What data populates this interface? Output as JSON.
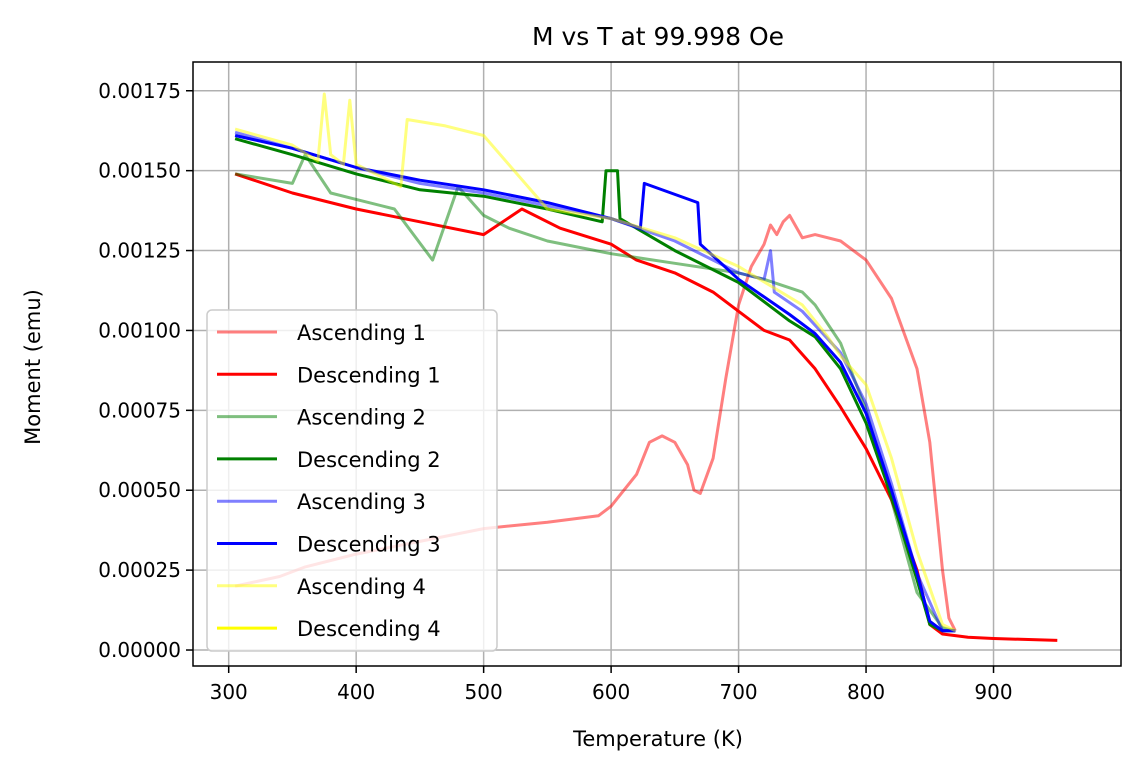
{
  "chart_data": {
    "type": "line",
    "title": "M vs T at 99.998 Oe",
    "xlabel": "Temperature (K)",
    "ylabel": "Moment (emu)",
    "xlim": [
      272,
      1000
    ],
    "ylim": [
      -5e-05,
      0.00184
    ],
    "xticks": [
      300,
      400,
      500,
      600,
      700,
      800,
      900
    ],
    "xtick_labels": [
      "300",
      "400",
      "500",
      "600",
      "700",
      "800",
      "900"
    ],
    "yticks": [
      0,
      0.00025,
      0.0005,
      0.00075,
      0.001,
      0.00125,
      0.0015,
      0.00175
    ],
    "ytick_labels": [
      "0.00000",
      "0.00025",
      "0.00050",
      "0.00075",
      "0.00100",
      "0.00125",
      "0.00150",
      "0.00175"
    ],
    "grid": true,
    "legend_position": "lower-left",
    "series": [
      {
        "name": "Ascending 1",
        "color": "#ff0000",
        "alpha": 0.5,
        "x": [
          305,
          340,
          360,
          380,
          400,
          450,
          500,
          550,
          590,
          600,
          620,
          630,
          640,
          650,
          660,
          665,
          670,
          680,
          690,
          700,
          710,
          720,
          725,
          730,
          735,
          740,
          750,
          760,
          780,
          800,
          820,
          840,
          850,
          860,
          865,
          870
        ],
        "y": [
          0.0002,
          0.00023,
          0.00026,
          0.00028,
          0.0003,
          0.00034,
          0.00038,
          0.0004,
          0.00042,
          0.00045,
          0.00055,
          0.00065,
          0.00067,
          0.00065,
          0.00058,
          0.0005,
          0.00049,
          0.0006,
          0.00085,
          0.00108,
          0.0012,
          0.00127,
          0.00133,
          0.0013,
          0.00134,
          0.00136,
          0.00129,
          0.0013,
          0.00128,
          0.00122,
          0.0011,
          0.00088,
          0.00065,
          0.00025,
          0.0001,
          6e-05
        ]
      },
      {
        "name": "Descending 1",
        "color": "#ff0000",
        "alpha": 1.0,
        "x": [
          305,
          350,
          400,
          450,
          500,
          530,
          560,
          600,
          620,
          650,
          680,
          700,
          720,
          740,
          760,
          780,
          800,
          820,
          840,
          850,
          860,
          880,
          900,
          950
        ],
        "y": [
          0.00149,
          0.00143,
          0.00138,
          0.00134,
          0.0013,
          0.00138,
          0.00132,
          0.00127,
          0.00122,
          0.00118,
          0.00112,
          0.00106,
          0.001,
          0.00097,
          0.00088,
          0.00076,
          0.00063,
          0.00047,
          0.00025,
          8e-05,
          5e-05,
          4e-05,
          3.6e-05,
          3e-05
        ]
      },
      {
        "name": "Ascending 2",
        "color": "#008000",
        "alpha": 0.5,
        "x": [
          305,
          350,
          360,
          380,
          400,
          430,
          460,
          480,
          500,
          520,
          550,
          600,
          650,
          700,
          720,
          750,
          760,
          780,
          800,
          820,
          840,
          860,
          870
        ],
        "y": [
          0.00149,
          0.00146,
          0.00155,
          0.00143,
          0.00141,
          0.00138,
          0.00122,
          0.00145,
          0.00136,
          0.00132,
          0.00128,
          0.00124,
          0.00121,
          0.00118,
          0.00116,
          0.00112,
          0.00108,
          0.00096,
          0.00075,
          0.00047,
          0.00018,
          7e-05,
          6e-05
        ]
      },
      {
        "name": "Descending 2",
        "color": "#008000",
        "alpha": 1.0,
        "x": [
          305,
          350,
          400,
          450,
          500,
          550,
          593,
          596,
          605,
          607,
          650,
          700,
          740,
          760,
          780,
          800,
          820,
          840,
          850,
          860,
          870
        ],
        "y": [
          0.0016,
          0.00155,
          0.00149,
          0.00144,
          0.00142,
          0.00138,
          0.00134,
          0.0015,
          0.0015,
          0.00135,
          0.00125,
          0.00115,
          0.00103,
          0.00098,
          0.00088,
          0.00071,
          0.00048,
          0.00022,
          8e-05,
          6e-05,
          6e-05
        ]
      },
      {
        "name": "Ascending 3",
        "color": "#0000ff",
        "alpha": 0.5,
        "x": [
          305,
          350,
          400,
          450,
          500,
          550,
          600,
          650,
          700,
          720,
          725,
          728,
          750,
          780,
          800,
          820,
          840,
          860,
          870
        ],
        "y": [
          0.00162,
          0.00157,
          0.00151,
          0.00146,
          0.00143,
          0.00139,
          0.00135,
          0.00128,
          0.00118,
          0.00116,
          0.00125,
          0.00112,
          0.00106,
          0.00093,
          0.00077,
          0.00052,
          0.00024,
          6e-05,
          6e-05
        ]
      },
      {
        "name": "Descending 3",
        "color": "#0000ff",
        "alpha": 1.0,
        "x": [
          305,
          350,
          400,
          450,
          500,
          550,
          600,
          623,
          626,
          668,
          670,
          700,
          740,
          760,
          780,
          800,
          820,
          840,
          850,
          860,
          870
        ],
        "y": [
          0.00161,
          0.00157,
          0.00151,
          0.00147,
          0.00144,
          0.0014,
          0.00135,
          0.00132,
          0.00146,
          0.0014,
          0.00127,
          0.00116,
          0.00105,
          0.00099,
          0.0009,
          0.00074,
          0.0005,
          0.00024,
          9e-05,
          6e-05,
          6e-05
        ]
      },
      {
        "name": "Ascending 4",
        "color": "#ffff00",
        "alpha": 0.5,
        "x": [
          305,
          350,
          370,
          375,
          380,
          390,
          395,
          400,
          420,
          435,
          440,
          470,
          500,
          550,
          600,
          650,
          700,
          750,
          770,
          780,
          800,
          820,
          840,
          860,
          870
        ],
        "y": [
          0.00163,
          0.00158,
          0.00153,
          0.00174,
          0.00155,
          0.00152,
          0.00172,
          0.00152,
          0.00148,
          0.00145,
          0.00166,
          0.00164,
          0.00161,
          0.00138,
          0.00135,
          0.00129,
          0.0012,
          0.00108,
          0.00098,
          0.00092,
          0.00083,
          0.0006,
          0.00031,
          8e-05,
          6e-05
        ]
      },
      {
        "name": "Descending 4",
        "color": "#ffff00",
        "alpha": 1.0,
        "x": [],
        "y": []
      }
    ]
  }
}
